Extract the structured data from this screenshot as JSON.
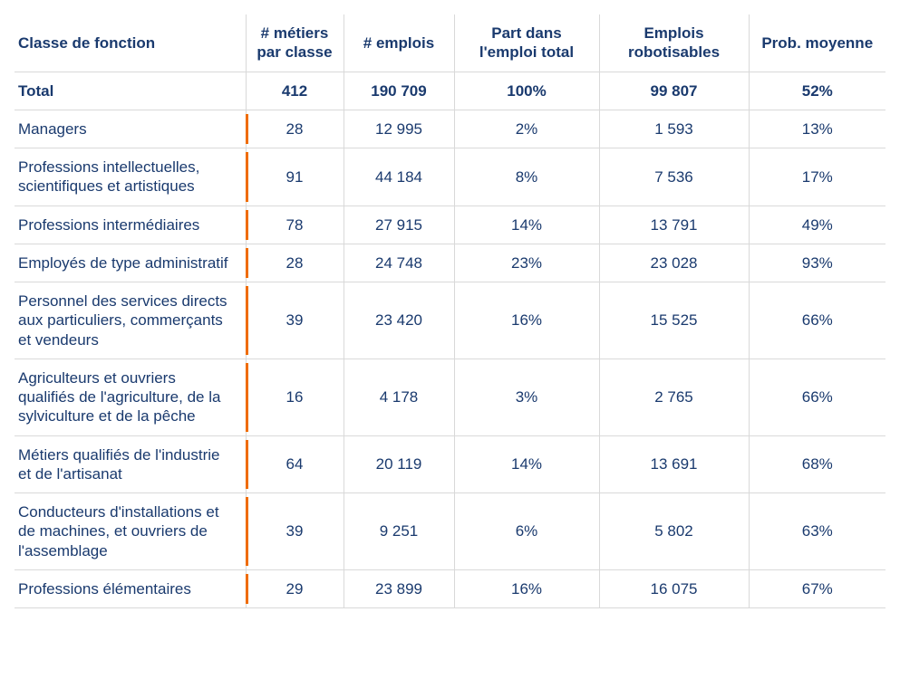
{
  "table": {
    "accent_color": "#ef6c00",
    "text_color": "#1a3a6e",
    "border_color": "#d9d9d9",
    "headers": {
      "classe": "Classe de fonction",
      "metiers": "# métiers par classe",
      "emplois": "# emplois",
      "part": "Part dans l'emploi total",
      "robot": "Emplois robotisables",
      "prob": "Prob. moyenne"
    },
    "total": {
      "label": "Total",
      "metiers": "412",
      "emplois": "190 709",
      "part": "100%",
      "robot": "99 807",
      "prob": "52%"
    },
    "rows": [
      {
        "label": "Managers",
        "metiers": "28",
        "emplois": "12 995",
        "part": "2%",
        "robot": "1 593",
        "prob": "13%"
      },
      {
        "label": "Professions intellectuelles, scientifiques et artistiques",
        "metiers": "91",
        "emplois": "44 184",
        "part": "8%",
        "robot": "7 536",
        "prob": "17%"
      },
      {
        "label": "Professions intermédiaires",
        "metiers": "78",
        "emplois": "27 915",
        "part": "14%",
        "robot": "13 791",
        "prob": "49%"
      },
      {
        "label": "Employés de type administratif",
        "metiers": "28",
        "emplois": "24 748",
        "part": "23%",
        "robot": "23 028",
        "prob": "93%"
      },
      {
        "label": "Personnel des services directs aux particuliers, commerçants et vendeurs",
        "metiers": "39",
        "emplois": "23 420",
        "part": "16%",
        "robot": "15 525",
        "prob": "66%"
      },
      {
        "label": "Agriculteurs et ouvriers qualifiés de l'agriculture, de la sylviculture et de la pêche",
        "metiers": "16",
        "emplois": "4 178",
        "part": "3%",
        "robot": "2 765",
        "prob": "66%"
      },
      {
        "label": "Métiers qualifiés de l'industrie et de l'artisanat",
        "metiers": "64",
        "emplois": "20 119",
        "part": "14%",
        "robot": "13 691",
        "prob": "68%"
      },
      {
        "label": "Conducteurs d'installations et de machines, et ouvriers de l'assemblage",
        "metiers": "39",
        "emplois": "9 251",
        "part": "6%",
        "robot": "5 802",
        "prob": "63%"
      },
      {
        "label": "Professions élémentaires",
        "metiers": "29",
        "emplois": "23 899",
        "part": "16%",
        "robot": "16 075",
        "prob": "67%"
      }
    ]
  }
}
